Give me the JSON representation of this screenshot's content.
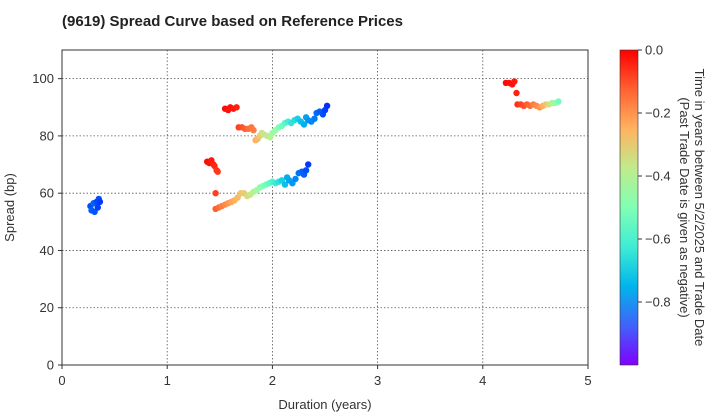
{
  "chart_data": {
    "type": "scatter",
    "title": "(9619)   Spread Curve based on Reference Prices",
    "xlabel": "Duration (years)",
    "ylabel": "Spread (bp)",
    "xlim": [
      0,
      5
    ],
    "ylim": [
      0,
      110
    ],
    "xticks": [
      "0",
      "1",
      "2",
      "3",
      "4",
      "5"
    ],
    "yticks": [
      "0",
      "20",
      "40",
      "60",
      "80",
      "100"
    ],
    "grid": true,
    "colorbar": {
      "label_line1": "Time in years between 5/2/2025 and Trade Date",
      "label_line2": "(Past Trade Date is given as negative)",
      "range": [
        -1.0,
        0.0
      ],
      "ticks": [
        "0.0",
        "−0.2",
        "−0.4",
        "−0.6",
        "−0.8"
      ],
      "colormap": "rainbow"
    },
    "series": [
      {
        "points": [
          [
            0.27,
            55.5,
            -0.9
          ],
          [
            0.28,
            54.0,
            -0.88
          ],
          [
            0.3,
            56.5,
            -0.87
          ],
          [
            0.31,
            53.5,
            -0.89
          ],
          [
            0.33,
            57.0,
            -0.91
          ],
          [
            0.34,
            55.0,
            -0.92
          ],
          [
            0.35,
            58.0,
            -0.9
          ],
          [
            0.36,
            57.0,
            -0.93
          ],
          [
            1.38,
            71.0,
            -0.01
          ],
          [
            1.4,
            70.5,
            -0.02
          ],
          [
            1.42,
            71.5,
            -0.03
          ],
          [
            1.44,
            70.0,
            -0.04
          ],
          [
            1.45,
            69.5,
            -0.05
          ],
          [
            1.47,
            68.0,
            -0.06
          ],
          [
            1.48,
            67.5,
            -0.07
          ],
          [
            1.46,
            60.0,
            -0.08
          ],
          [
            1.55,
            89.5,
            -0.01
          ],
          [
            1.58,
            89.0,
            -0.02
          ],
          [
            1.6,
            90.0,
            -0.02
          ],
          [
            1.63,
            89.5,
            -0.03
          ],
          [
            1.66,
            90.0,
            -0.04
          ],
          [
            1.68,
            83.0,
            -0.08
          ],
          [
            1.71,
            83.0,
            -0.1
          ],
          [
            1.74,
            82.5,
            -0.12
          ],
          [
            1.77,
            82.5,
            -0.14
          ],
          [
            1.8,
            83.0,
            -0.15
          ],
          [
            1.82,
            82.0,
            -0.16
          ],
          [
            1.84,
            78.5,
            -0.24
          ],
          [
            1.86,
            79.0,
            -0.26
          ],
          [
            1.88,
            80.0,
            -0.3
          ],
          [
            1.9,
            81.0,
            -0.34
          ],
          [
            1.92,
            80.5,
            -0.36
          ],
          [
            1.95,
            80.0,
            -0.38
          ],
          [
            1.98,
            79.5,
            -0.4
          ],
          [
            2.0,
            81.0,
            -0.43
          ],
          [
            2.03,
            82.0,
            -0.46
          ],
          [
            2.06,
            83.0,
            -0.5
          ],
          [
            2.09,
            83.5,
            -0.54
          ],
          [
            2.12,
            84.5,
            -0.58
          ],
          [
            2.15,
            85.0,
            -0.62
          ],
          [
            2.18,
            84.5,
            -0.65
          ],
          [
            2.21,
            85.5,
            -0.67
          ],
          [
            2.24,
            86.0,
            -0.7
          ],
          [
            2.27,
            85.0,
            -0.73
          ],
          [
            2.3,
            84.0,
            -0.76
          ],
          [
            2.32,
            86.5,
            -0.78
          ],
          [
            2.34,
            85.5,
            -0.8
          ],
          [
            2.37,
            85.0,
            -0.82
          ],
          [
            2.4,
            86.0,
            -0.84
          ],
          [
            2.42,
            88.0,
            -0.86
          ],
          [
            2.45,
            88.5,
            -0.88
          ],
          [
            2.48,
            87.5,
            -0.9
          ],
          [
            2.5,
            89.0,
            -0.92
          ],
          [
            2.52,
            90.5,
            -0.94
          ],
          [
            1.46,
            54.5,
            -0.12
          ],
          [
            1.49,
            55.0,
            -0.14
          ],
          [
            1.52,
            55.5,
            -0.16
          ],
          [
            1.55,
            56.0,
            -0.18
          ],
          [
            1.58,
            56.5,
            -0.2
          ],
          [
            1.61,
            57.0,
            -0.22
          ],
          [
            1.64,
            57.5,
            -0.24
          ],
          [
            1.67,
            58.5,
            -0.26
          ],
          [
            1.7,
            60.0,
            -0.28
          ],
          [
            1.73,
            60.0,
            -0.3
          ],
          [
            1.76,
            59.0,
            -0.33
          ],
          [
            1.79,
            59.5,
            -0.36
          ],
          [
            1.82,
            60.5,
            -0.4
          ],
          [
            1.85,
            61.0,
            -0.43
          ],
          [
            1.88,
            62.0,
            -0.47
          ],
          [
            1.91,
            62.5,
            -0.5
          ],
          [
            1.94,
            63.0,
            -0.53
          ],
          [
            1.97,
            63.5,
            -0.56
          ],
          [
            2.0,
            64.0,
            -0.6
          ],
          [
            2.03,
            63.5,
            -0.63
          ],
          [
            2.06,
            64.0,
            -0.66
          ],
          [
            2.09,
            64.5,
            -0.7
          ],
          [
            2.12,
            63.0,
            -0.73
          ],
          [
            2.14,
            65.5,
            -0.76
          ],
          [
            2.16,
            64.5,
            -0.78
          ],
          [
            2.19,
            63.5,
            -0.8
          ],
          [
            2.22,
            65.0,
            -0.82
          ],
          [
            2.25,
            67.0,
            -0.85
          ],
          [
            2.28,
            67.5,
            -0.87
          ],
          [
            2.3,
            66.5,
            -0.88
          ],
          [
            2.32,
            68.0,
            -0.9
          ],
          [
            2.34,
            70.0,
            -0.93
          ],
          [
            4.22,
            98.5,
            -0.01
          ],
          [
            4.25,
            98.5,
            -0.02
          ],
          [
            4.28,
            98.0,
            -0.02
          ],
          [
            4.3,
            99.0,
            -0.03
          ],
          [
            4.32,
            95.0,
            -0.04
          ],
          [
            4.33,
            91.0,
            -0.06
          ],
          [
            4.36,
            91.0,
            -0.08
          ],
          [
            4.39,
            90.5,
            -0.1
          ],
          [
            4.42,
            91.0,
            -0.12
          ],
          [
            4.45,
            90.5,
            -0.14
          ],
          [
            4.48,
            91.0,
            -0.16
          ],
          [
            4.51,
            90.5,
            -0.18
          ],
          [
            4.54,
            90.0,
            -0.2
          ],
          [
            4.57,
            90.5,
            -0.24
          ],
          [
            4.6,
            91.0,
            -0.28
          ],
          [
            4.63,
            91.0,
            -0.34
          ],
          [
            4.66,
            91.5,
            -0.4
          ],
          [
            4.69,
            91.5,
            -0.46
          ],
          [
            4.72,
            92.0,
            -0.52
          ]
        ]
      }
    ]
  }
}
